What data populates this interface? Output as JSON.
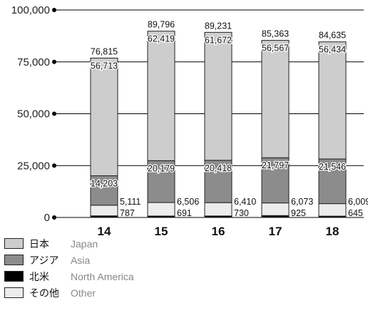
{
  "chart_data": {
    "type": "bar",
    "stacked": true,
    "categories": [
      "14",
      "15",
      "16",
      "17",
      "18"
    ],
    "series": [
      {
        "name": "北米",
        "name_en": "North America",
        "color": "#000000",
        "values": [
          787,
          691,
          730,
          925,
          645
        ]
      },
      {
        "name": "その他",
        "name_en": "Other",
        "color": "#ececec",
        "values": [
          5111,
          6506,
          6410,
          6073,
          6009
        ]
      },
      {
        "name": "アジア",
        "name_en": "Asia",
        "color": "#8c8c8c",
        "values": [
          14203,
          20179,
          20418,
          21797,
          21546
        ]
      },
      {
        "name": "日本",
        "name_en": "Japan",
        "color": "#cdcdcd",
        "values": [
          56713,
          62419,
          61672,
          56567,
          56434
        ]
      }
    ],
    "totals": [
      76815,
      89796,
      89231,
      85363,
      84635
    ],
    "yticks": [
      "0",
      "25,000",
      "50,000",
      "75,000",
      "100,000"
    ],
    "ylim": [
      0,
      100000
    ],
    "grid": true,
    "legend_position": "bottom-left",
    "legend_order": [
      3,
      2,
      0,
      1
    ]
  }
}
